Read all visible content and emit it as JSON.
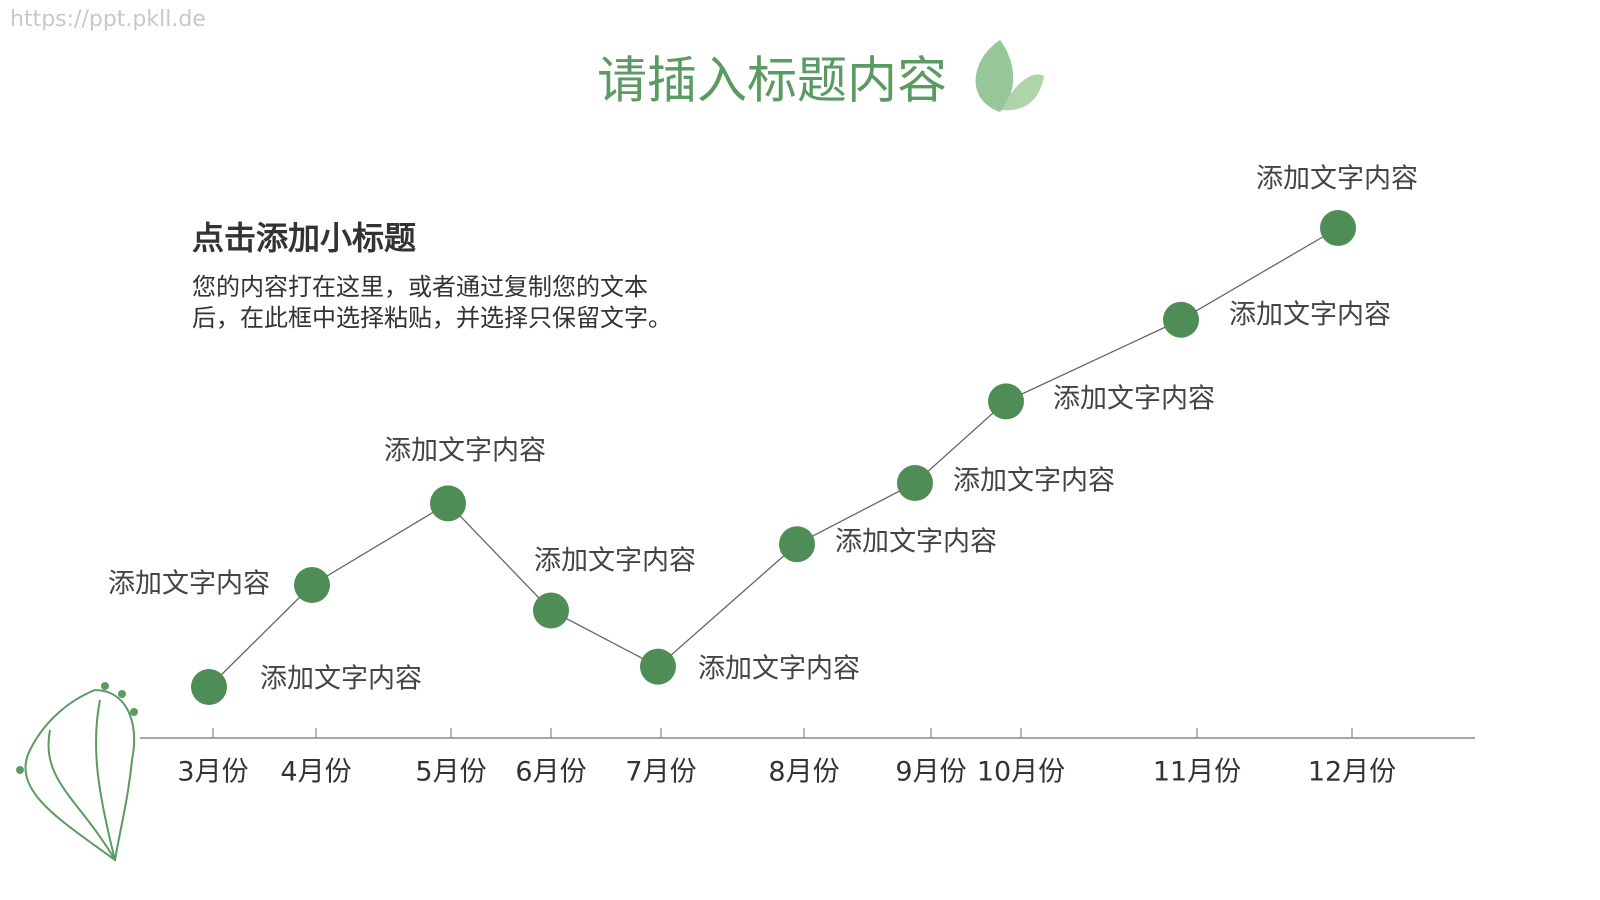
{
  "watermark": "https://ppt.pkll.de",
  "chart_data": {
    "type": "line",
    "title": "请插入标题内容",
    "subtitle": "点击添加小标题",
    "text": [
      "您的内容打在这里，或者通过复制您的文本",
      "后，在此框中选择粘贴，并选择只保留文字。"
    ],
    "categories": [
      "3月份",
      "4月份",
      "5月份",
      "6月份",
      "7月份",
      "8月份",
      "9月份",
      "10月份",
      "11月份",
      "12月份"
    ],
    "values": [
      10,
      30,
      46,
      25,
      14,
      38,
      50,
      66,
      82,
      100
    ],
    "point_labels": [
      "添加文字内容",
      "添加文字内容",
      "添加文字内容",
      "添加文字内容",
      "添加文字内容",
      "添加文字内容",
      "添加文字内容",
      "添加文字内容",
      "添加文字内容",
      "添加文字内容"
    ],
    "color": "#4f8d57",
    "line_color": "#666666",
    "ylim": [
      0,
      100
    ]
  }
}
